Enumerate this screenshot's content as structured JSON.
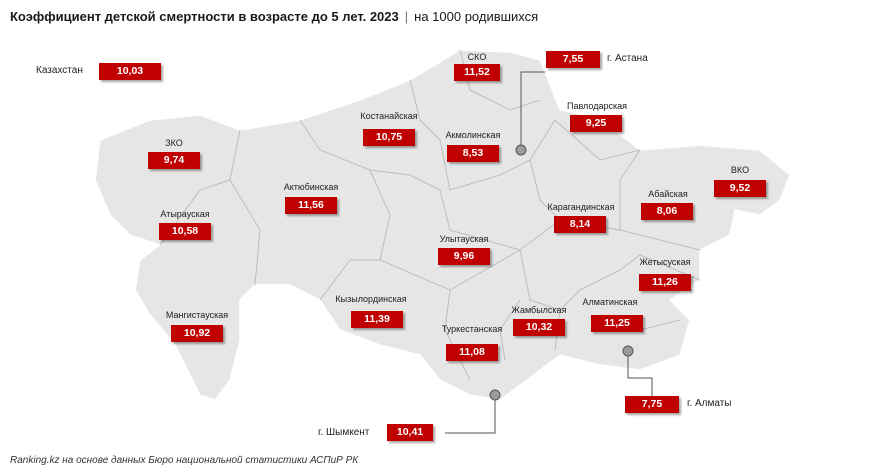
{
  "header": {
    "title": "Коэффициент детской смертности в возрасте до 5 лет. 2023",
    "separator": "|",
    "unit": "на 1000 родившихся"
  },
  "country": {
    "name": "Казахстан",
    "value": "10,03"
  },
  "regions": [
    {
      "id": "sko",
      "name": "СКО",
      "value": "11,52"
    },
    {
      "id": "pavlodar",
      "name": "Павлодарская",
      "value": "9,25"
    },
    {
      "id": "kostanay",
      "name": "Костанайская",
      "value": "10,75"
    },
    {
      "id": "akmola",
      "name": "Акмолинская",
      "value": "8,53"
    },
    {
      "id": "zko",
      "name": "ЗКО",
      "value": "9,74"
    },
    {
      "id": "aktobe",
      "name": "Актюбинская",
      "value": "11,56"
    },
    {
      "id": "vko",
      "name": "ВКО",
      "value": "9,52"
    },
    {
      "id": "abai",
      "name": "Абайская",
      "value": "8,06"
    },
    {
      "id": "karaganda",
      "name": "Карагандинская",
      "value": "8,14"
    },
    {
      "id": "atyrau",
      "name": "Атырауская",
      "value": "10,58"
    },
    {
      "id": "ulytau",
      "name": "Улытауская",
      "value": "9,96"
    },
    {
      "id": "zhetysu",
      "name": "Жетысуская",
      "value": "11,26"
    },
    {
      "id": "kyzylorda",
      "name": "Кызылординская",
      "value": "11,39"
    },
    {
      "id": "mangystau",
      "name": "Мангистауская",
      "value": "10,92"
    },
    {
      "id": "zhambyl",
      "name": "Жамбылская",
      "value": "10,32"
    },
    {
      "id": "almaty_obl",
      "name": "Алматинская",
      "value": "11,25"
    },
    {
      "id": "turkestan",
      "name": "Туркестанская",
      "value": "11,08"
    }
  ],
  "cities": [
    {
      "id": "astana",
      "name": "г. Астана",
      "value": "7,55"
    },
    {
      "id": "almaty",
      "name": "г. Алматы",
      "value": "7,75"
    },
    {
      "id": "shymkent",
      "name": "г. Шымкент",
      "value": "10,41"
    }
  ],
  "colors": {
    "value_box": "#c00000",
    "map_fill": "#e6e6e6",
    "border": "#ffffff"
  },
  "source": "Ranking.kz на основе данных Бюро национальной статистики АСПиР РК"
}
